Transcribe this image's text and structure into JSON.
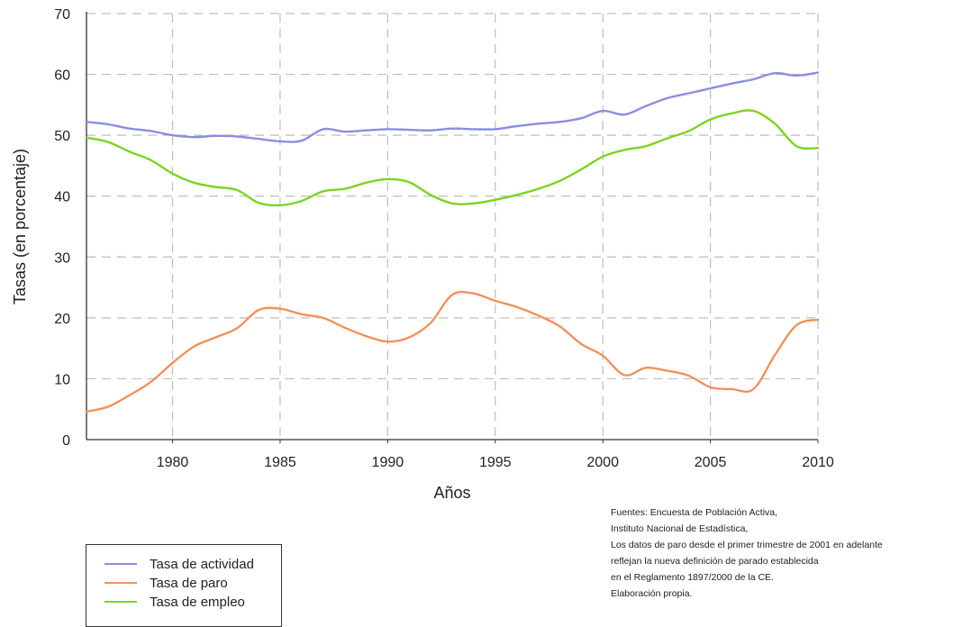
{
  "chart_data": {
    "type": "line",
    "title": "",
    "xlabel": "Años",
    "ylabel": "Tasas (en porcentaje)",
    "xlim": [
      1976,
      2010
    ],
    "ylim": [
      0,
      70
    ],
    "x_ticks": [
      1980,
      1985,
      1990,
      1995,
      2000,
      2005,
      2010
    ],
    "y_ticks": [
      0,
      10,
      20,
      30,
      40,
      50,
      60,
      70
    ],
    "grid": true,
    "legend_position": "bottom-left",
    "series": [
      {
        "name": "Tasa de actividad",
        "color": "#8a8ee0",
        "points": [
          [
            1976,
            52.2
          ],
          [
            1977,
            51.8
          ],
          [
            1978,
            51.1
          ],
          [
            1979,
            50.7
          ],
          [
            1980,
            50.0
          ],
          [
            1981,
            49.7
          ],
          [
            1982,
            49.9
          ],
          [
            1983,
            49.8
          ],
          [
            1984,
            49.4
          ],
          [
            1985,
            49.0
          ],
          [
            1986,
            49.1
          ],
          [
            1987,
            51.0
          ],
          [
            1988,
            50.6
          ],
          [
            1989,
            50.8
          ],
          [
            1990,
            51.0
          ],
          [
            1991,
            50.9
          ],
          [
            1992,
            50.8
          ],
          [
            1993,
            51.1
          ],
          [
            1994,
            51.0
          ],
          [
            1995,
            51.0
          ],
          [
            1996,
            51.5
          ],
          [
            1997,
            51.9
          ],
          [
            1998,
            52.2
          ],
          [
            1999,
            52.8
          ],
          [
            2000,
            54.0
          ],
          [
            2001,
            53.4
          ],
          [
            2002,
            54.8
          ],
          [
            2003,
            56.1
          ],
          [
            2004,
            56.9
          ],
          [
            2005,
            57.7
          ],
          [
            2006,
            58.5
          ],
          [
            2007,
            59.2
          ],
          [
            2008,
            60.2
          ],
          [
            2009,
            59.8
          ],
          [
            2010,
            60.3
          ]
        ]
      },
      {
        "name": "Tasa de paro",
        "color": "#f0925a",
        "points": [
          [
            1976,
            4.6
          ],
          [
            1977,
            5.4
          ],
          [
            1978,
            7.3
          ],
          [
            1979,
            9.5
          ],
          [
            1980,
            12.6
          ],
          [
            1981,
            15.3
          ],
          [
            1982,
            16.8
          ],
          [
            1983,
            18.3
          ],
          [
            1984,
            21.3
          ],
          [
            1985,
            21.5
          ],
          [
            1986,
            20.6
          ],
          [
            1987,
            20.0
          ],
          [
            1988,
            18.4
          ],
          [
            1989,
            17.0
          ],
          [
            1990,
            16.1
          ],
          [
            1991,
            16.8
          ],
          [
            1992,
            19.2
          ],
          [
            1993,
            23.8
          ],
          [
            1994,
            24.0
          ],
          [
            1995,
            22.8
          ],
          [
            1996,
            21.8
          ],
          [
            1997,
            20.4
          ],
          [
            1998,
            18.6
          ],
          [
            1999,
            15.7
          ],
          [
            2000,
            13.8
          ],
          [
            2001,
            10.6
          ],
          [
            2002,
            11.8
          ],
          [
            2003,
            11.3
          ],
          [
            2004,
            10.5
          ],
          [
            2005,
            8.6
          ],
          [
            2006,
            8.3
          ],
          [
            2007,
            8.3
          ],
          [
            2008,
            13.9
          ],
          [
            2009,
            18.8
          ],
          [
            2010,
            19.7
          ]
        ]
      },
      {
        "name": "Tasa de empleo",
        "color": "#7ed321",
        "points": [
          [
            1976,
            49.6
          ],
          [
            1977,
            48.9
          ],
          [
            1978,
            47.3
          ],
          [
            1979,
            45.9
          ],
          [
            1980,
            43.7
          ],
          [
            1981,
            42.2
          ],
          [
            1982,
            41.5
          ],
          [
            1983,
            41.0
          ],
          [
            1984,
            38.9
          ],
          [
            1985,
            38.5
          ],
          [
            1986,
            39.2
          ],
          [
            1987,
            40.8
          ],
          [
            1988,
            41.2
          ],
          [
            1989,
            42.2
          ],
          [
            1990,
            42.8
          ],
          [
            1991,
            42.3
          ],
          [
            1992,
            40.2
          ],
          [
            1993,
            38.8
          ],
          [
            1994,
            38.8
          ],
          [
            1995,
            39.4
          ],
          [
            1996,
            40.2
          ],
          [
            1997,
            41.2
          ],
          [
            1998,
            42.5
          ],
          [
            1999,
            44.4
          ],
          [
            2000,
            46.5
          ],
          [
            2001,
            47.6
          ],
          [
            2002,
            48.2
          ],
          [
            2003,
            49.5
          ],
          [
            2004,
            50.7
          ],
          [
            2005,
            52.6
          ],
          [
            2006,
            53.6
          ],
          [
            2007,
            54.0
          ],
          [
            2008,
            51.9
          ],
          [
            2009,
            48.2
          ],
          [
            2010,
            47.9
          ]
        ]
      }
    ]
  },
  "notes": [
    "Fuentes: Encuesta de Población Activa,",
    "Instituto Nacional de Estadística,",
    "Los datos de paro desde el primer trimestre de 2001 en adelante",
    "reflejan la nueva definición de parado establecida",
    "en el Reglamento 1897/2000 de la CE.",
    "Elaboración propia."
  ]
}
